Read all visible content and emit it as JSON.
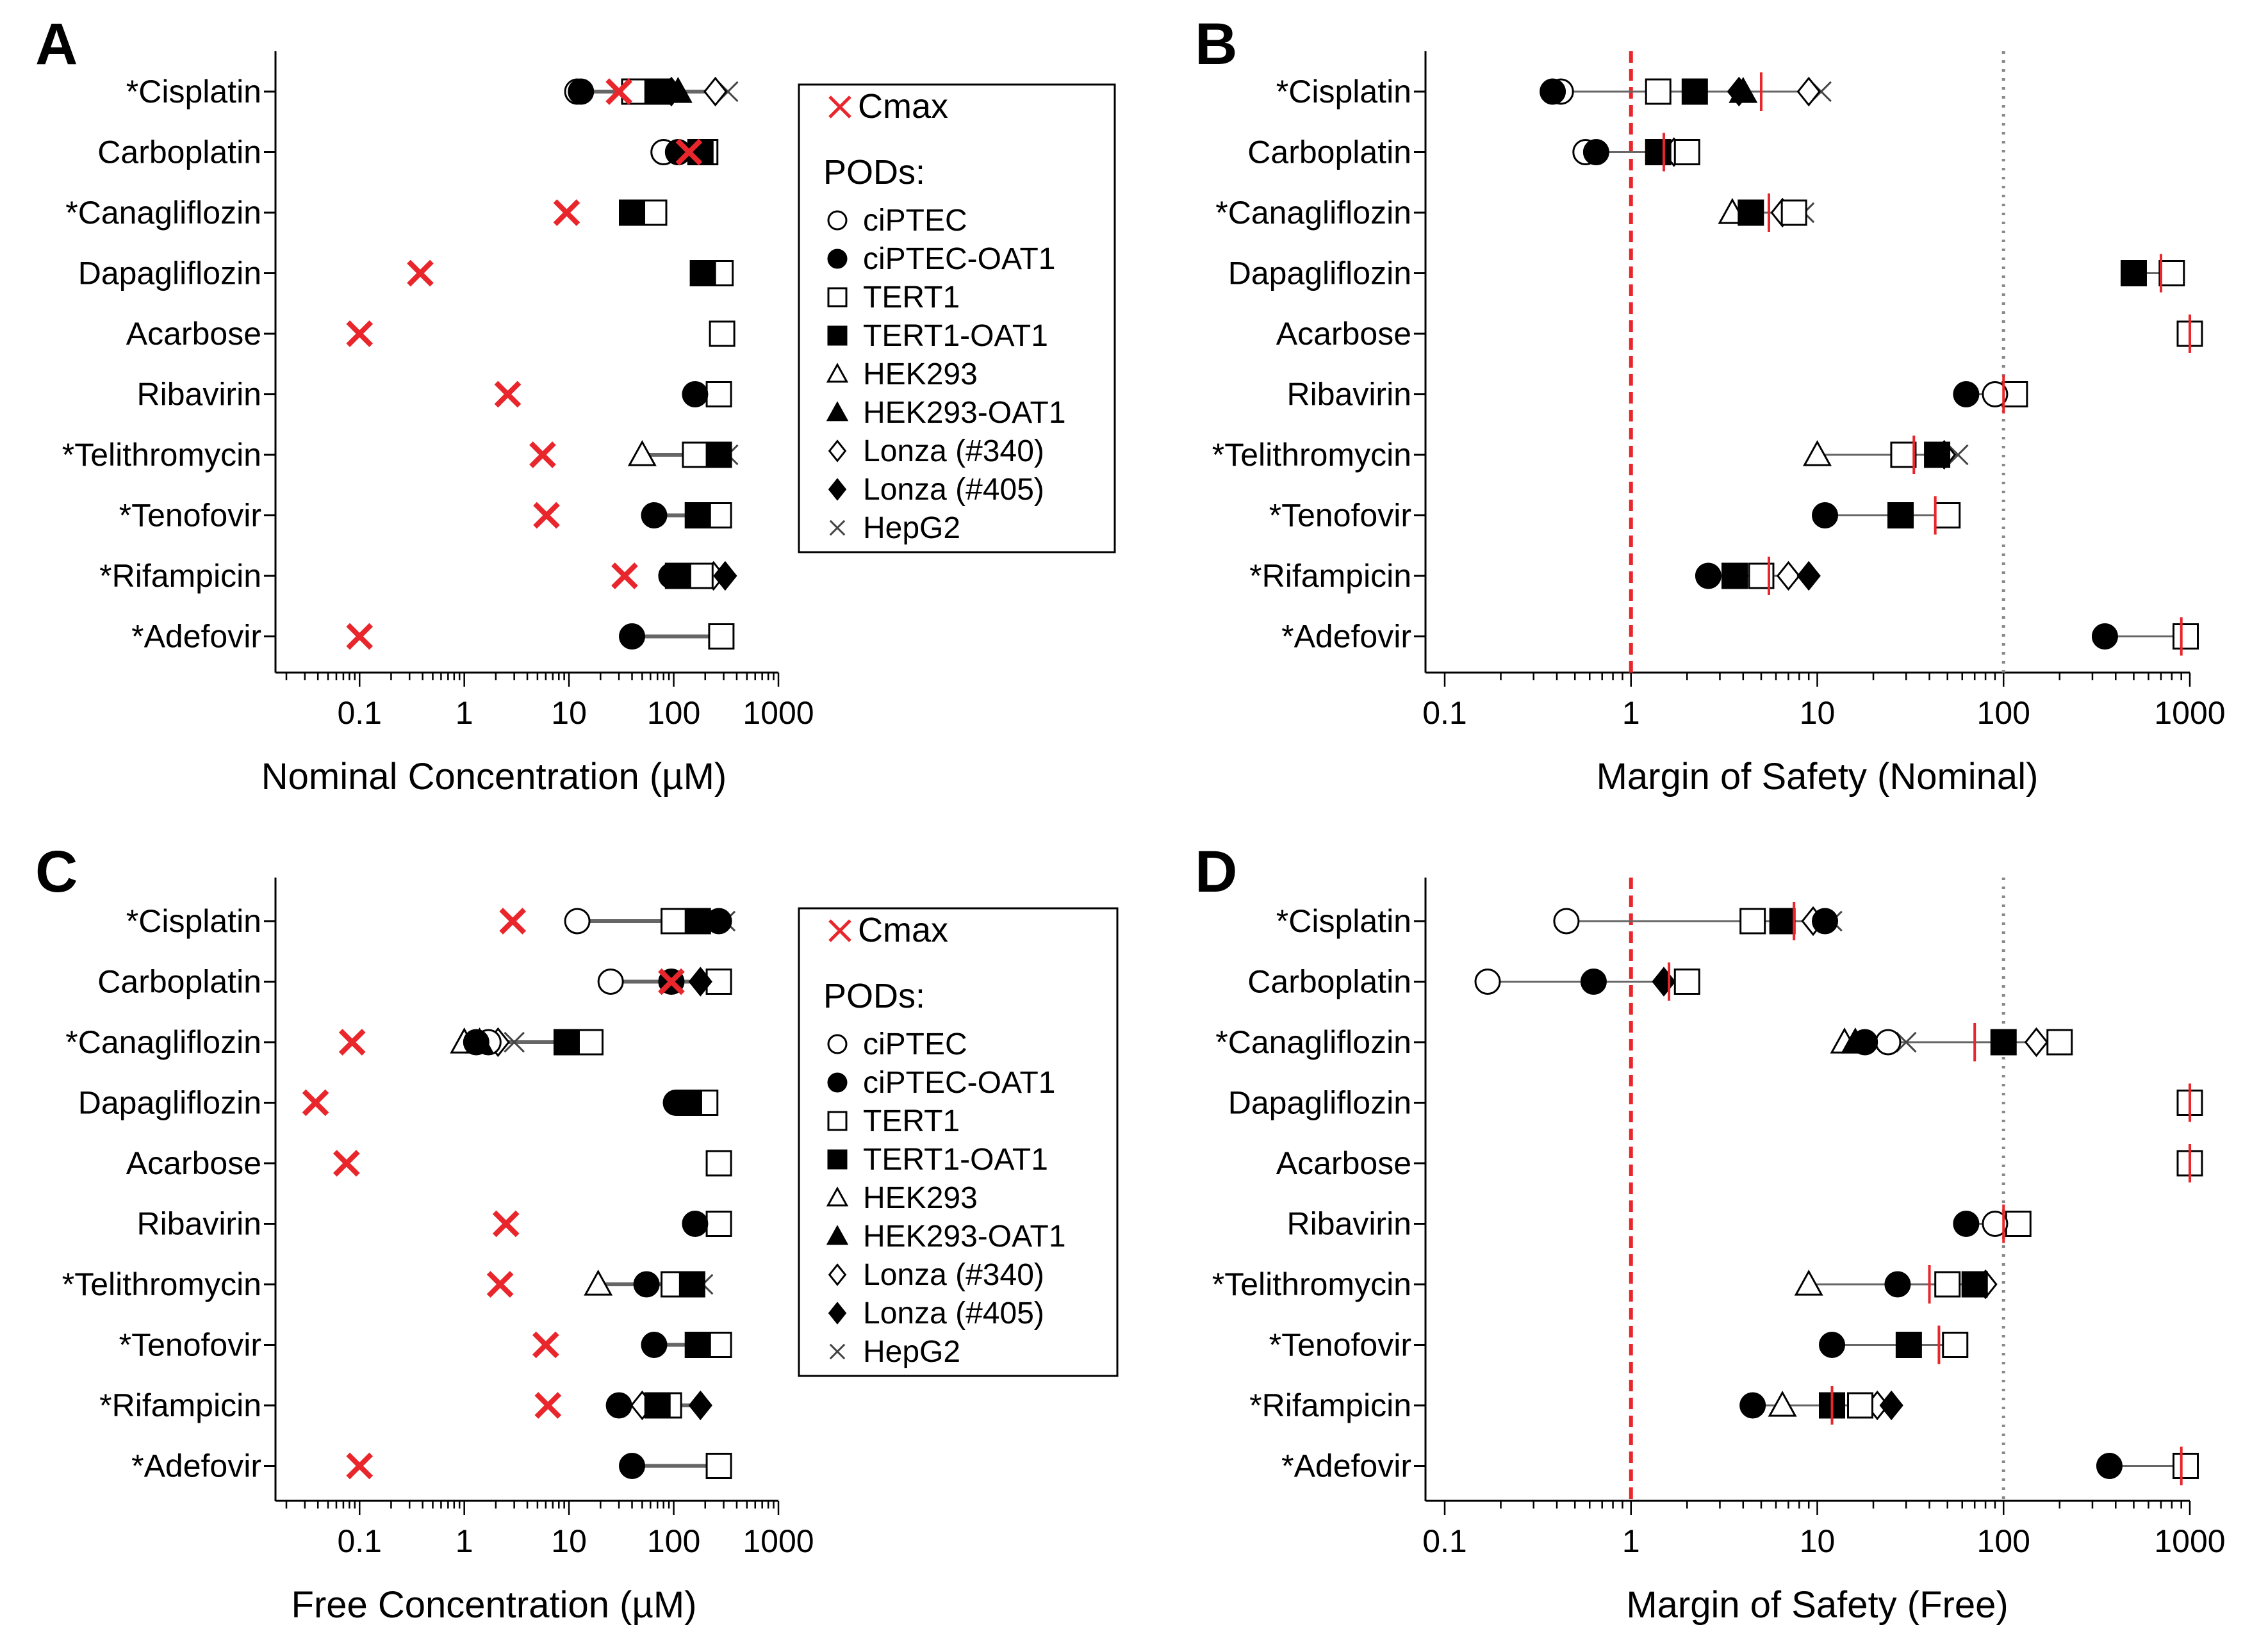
{
  "colors": {
    "cmax": "#e8262b",
    "axis": "#000000",
    "range": "#666666",
    "threshold": "#e8262b",
    "ref100": "#888888"
  },
  "chart_data": [
    {
      "panel": "A",
      "type": "scatter",
      "xscale": "log",
      "xlim": [
        0.02,
        1000
      ],
      "xlabel": "Nominal Concentration (µM)",
      "xticks": [
        "0.1",
        "1",
        "10",
        "100",
        "1000"
      ],
      "legend": "right",
      "categories": [
        "*Cisplatin",
        "Carboplatin",
        "*Canagliflozin",
        "Dapagliflozin",
        "Acarbose",
        "Ribavirin",
        "*Telithromycin",
        "*Tenofovir",
        "*Rifampicin",
        "*Adefovir"
      ],
      "cmax": [
        30,
        140,
        9.5,
        0.38,
        0.1,
        2.6,
        5.6,
        6.1,
        34,
        0.1
      ],
      "series": [
        {
          "name": "ciPTEC",
          "values": [
            12,
            80,
            null,
            null,
            null,
            null,
            null,
            null,
            null,
            null
          ]
        },
        {
          "name": "ciPTEC-OAT1",
          "values": [
            13,
            110,
            null,
            null,
            null,
            160,
            null,
            65,
            95,
            40
          ]
        },
        {
          "name": "TERT1",
          "values": [
            42,
            200,
            65,
            280,
            290,
            270,
            160,
            270,
            180,
            285
          ]
        },
        {
          "name": "TERT1-OAT1",
          "values": [
            70,
            180,
            40,
            190,
            null,
            null,
            270,
            170,
            110,
            null
          ]
        },
        {
          "name": "HEK293",
          "values": [
            null,
            null,
            null,
            null,
            null,
            null,
            50,
            null,
            null,
            null
          ]
        },
        {
          "name": "HEK293-OAT1",
          "values": [
            110,
            null,
            null,
            null,
            null,
            null,
            null,
            null,
            null,
            null
          ]
        },
        {
          "name": "Lonza (#340)",
          "values": [
            250,
            null,
            null,
            null,
            null,
            null,
            null,
            null,
            240,
            null
          ]
        },
        {
          "name": "Lonza (#405)",
          "values": [
            95,
            null,
            null,
            null,
            null,
            null,
            null,
            null,
            310,
            null
          ]
        },
        {
          "name": "HepG2",
          "values": [
            330,
            null,
            null,
            null,
            null,
            null,
            330,
            null,
            null,
            null
          ]
        }
      ]
    },
    {
      "panel": "B",
      "type": "scatter",
      "xscale": "log",
      "xlim": [
        0.1,
        1000
      ],
      "xlabel": "Margin of Safety (Nominal)",
      "xticks": [
        "0.1",
        "1",
        "10",
        "100",
        "1000"
      ],
      "reference_lines": [
        1,
        100
      ],
      "categories": [
        "*Cisplatin",
        "Carboplatin",
        "*Canagliflozin",
        "Dapagliflozin",
        "Acarbose",
        "Ribavirin",
        "*Telithromycin",
        "*Tenofovir",
        "*Rifampicin",
        "*Adefovir"
      ],
      "geomean": [
        5,
        1.5,
        5.5,
        700,
        1000,
        100,
        33,
        43,
        5.5,
        900
      ],
      "series": [
        {
          "name": "ciPTEC",
          "values": [
            0.42,
            0.57,
            null,
            null,
            null,
            90,
            null,
            null,
            null,
            null
          ]
        },
        {
          "name": "ciPTEC-OAT1",
          "values": [
            0.38,
            0.65,
            null,
            null,
            null,
            63,
            null,
            11,
            2.6,
            350
          ]
        },
        {
          "name": "TERT1",
          "values": [
            1.4,
            2,
            7.5,
            800,
            1000,
            115,
            29,
            50,
            5,
            950
          ]
        },
        {
          "name": "TERT1-OAT1",
          "values": [
            2.2,
            1.4,
            4.4,
            500,
            null,
            null,
            44,
            28,
            3.6,
            null
          ]
        },
        {
          "name": "HEK293",
          "values": [
            null,
            null,
            3.5,
            null,
            null,
            null,
            10,
            null,
            null,
            null
          ]
        },
        {
          "name": "HEK293-OAT1",
          "values": [
            4,
            null,
            null,
            null,
            null,
            null,
            null,
            null,
            null,
            null
          ]
        },
        {
          "name": "Lonza (#340)",
          "values": [
            9,
            1.7,
            6.5,
            null,
            null,
            null,
            48,
            null,
            7,
            null
          ]
        },
        {
          "name": "Lonza (#405)",
          "values": [
            3.8,
            null,
            null,
            null,
            null,
            null,
            null,
            null,
            9,
            null
          ]
        },
        {
          "name": "HepG2",
          "values": [
            10.5,
            null,
            8.5,
            null,
            null,
            null,
            57,
            null,
            null,
            null
          ]
        }
      ]
    },
    {
      "panel": "C",
      "type": "scatter",
      "xscale": "log",
      "xlim": [
        0.02,
        1000
      ],
      "xlabel": "Free Concentration (µM)",
      "xticks": [
        "0.1",
        "1",
        "10",
        "100",
        "1000"
      ],
      "legend": "right",
      "categories": [
        "*Cisplatin",
        "Carboplatin",
        "*Canagliflozin",
        "Dapagliflozin",
        "Acarbose",
        "Ribavirin",
        "*Telithromycin",
        "*Tenofovir",
        "*Rifampicin",
        "*Adefovir"
      ],
      "cmax": [
        2.9,
        95,
        0.085,
        0.038,
        0.075,
        2.5,
        2.2,
        6,
        6.3,
        0.1
      ],
      "series": [
        {
          "name": "ciPTEC",
          "values": [
            12,
            25,
            1.7,
            null,
            null,
            null,
            null,
            null,
            null,
            null
          ]
        },
        {
          "name": "ciPTEC-OAT1",
          "values": [
            270,
            95,
            1.3,
            105,
            null,
            160,
            55,
            65,
            30,
            40
          ]
        },
        {
          "name": "TERT1",
          "values": [
            100,
            270,
            16,
            200,
            270,
            270,
            100,
            270,
            90,
            270
          ]
        },
        {
          "name": "TERT1-OAT1",
          "values": [
            170,
            null,
            9.5,
            140,
            null,
            null,
            150,
            170,
            70,
            null
          ]
        },
        {
          "name": "HEK293",
          "values": [
            null,
            null,
            1.0,
            null,
            null,
            null,
            19,
            null,
            null,
            null
          ]
        },
        {
          "name": "HEK293-OAT1",
          "values": [
            null,
            null,
            1.4,
            null,
            null,
            null,
            null,
            null,
            null,
            null
          ]
        },
        {
          "name": "Lonza (#340)",
          "values": [
            null,
            null,
            2.1,
            null,
            null,
            null,
            null,
            null,
            50,
            null
          ]
        },
        {
          "name": "Lonza (#405)",
          "values": [
            null,
            180,
            null,
            null,
            null,
            null,
            null,
            null,
            180,
            null
          ]
        },
        {
          "name": "HepG2",
          "values": [
            310,
            null,
            3.0,
            null,
            null,
            null,
            190,
            null,
            null,
            null
          ]
        }
      ]
    },
    {
      "panel": "D",
      "type": "scatter",
      "xscale": "log",
      "xlim": [
        0.1,
        1000
      ],
      "xlabel": "Margin of Safety (Free)",
      "xticks": [
        "0.1",
        "1",
        "10",
        "100",
        "1000"
      ],
      "reference_lines": [
        1,
        100
      ],
      "categories": [
        "*Cisplatin",
        "Carboplatin",
        "*Canagliflozin",
        "Dapagliflozin",
        "Acarbose",
        "Ribavirin",
        "*Telithromycin",
        "*Tenofovir",
        "*Rifampicin",
        "*Adefovir"
      ],
      "geomean": [
        7.5,
        1.6,
        70,
        1000,
        1000,
        100,
        40,
        45,
        12,
        900
      ],
      "series": [
        {
          "name": "ciPTEC",
          "values": [
            0.45,
            0.17,
            24,
            null,
            null,
            90,
            null,
            null,
            null,
            null
          ]
        },
        {
          "name": "ciPTEC-OAT1",
          "values": [
            11,
            0.63,
            18,
            null,
            null,
            63,
            27,
            12,
            4.5,
            370
          ]
        },
        {
          "name": "TERT1",
          "values": [
            4.5,
            2,
            200,
            1000,
            1000,
            120,
            50,
            55,
            17,
            950
          ]
        },
        {
          "name": "TERT1-OAT1",
          "values": [
            6.5,
            null,
            100,
            null,
            null,
            null,
            70,
            31,
            12,
            null
          ]
        },
        {
          "name": "HEK293",
          "values": [
            null,
            null,
            14,
            null,
            null,
            null,
            9,
            null,
            6.5,
            null
          ]
        },
        {
          "name": "HEK293-OAT1",
          "values": [
            null,
            null,
            16,
            null,
            null,
            null,
            null,
            null,
            null,
            null
          ]
        },
        {
          "name": "Lonza (#340)",
          "values": [
            9.5,
            null,
            150,
            null,
            null,
            null,
            80,
            null,
            21,
            null
          ]
        },
        {
          "name": "Lonza (#405)",
          "values": [
            null,
            1.5,
            null,
            null,
            null,
            null,
            null,
            null,
            25,
            null
          ]
        },
        {
          "name": "HepG2",
          "values": [
            12,
            null,
            30,
            null,
            null,
            null,
            null,
            null,
            null,
            null
          ]
        }
      ]
    }
  ],
  "legend": {
    "cmax_label": "Cmax",
    "pods_label": "PODs:",
    "items": [
      "ciPTEC",
      "ciPTEC-OAT1",
      "TERT1",
      "TERT1-OAT1",
      "HEK293",
      "HEK293-OAT1",
      "Lonza  (#340)",
      "Lonza  (#405)",
      "HepG2"
    ]
  }
}
